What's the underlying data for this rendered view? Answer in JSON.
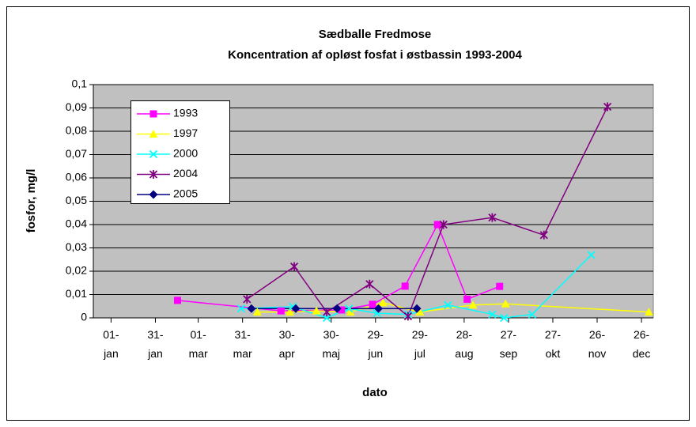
{
  "chart_data": {
    "type": "line",
    "title": "Sædballe Fredmose",
    "subtitle": "Koncentration af opløst fosfat i østbassin 1993-2004",
    "x_label": "dato",
    "y_label": "fosfor, mg/l",
    "xlim": [
      -11,
      368
    ],
    "xticks": [
      {
        "value": 1,
        "label": "01-jan"
      },
      {
        "value": 31,
        "label": "31-jan"
      },
      {
        "value": 60,
        "label": "01-mar"
      },
      {
        "value": 90,
        "label": "31-mar"
      },
      {
        "value": 120,
        "label": "30-apr"
      },
      {
        "value": 150,
        "label": "30-maj"
      },
      {
        "value": 180,
        "label": "29-jun"
      },
      {
        "value": 210,
        "label": "29-jul"
      },
      {
        "value": 240,
        "label": "28-aug"
      },
      {
        "value": 270,
        "label": "27-sep"
      },
      {
        "value": 300,
        "label": "27-okt"
      },
      {
        "value": 330,
        "label": "26-nov"
      },
      {
        "value": 360,
        "label": "26-dec"
      }
    ],
    "ylim": [
      0,
      0.1
    ],
    "yticks": [
      0,
      {
        "value": 0.01,
        "label": "0,01"
      },
      {
        "value": 0.02,
        "label": "0,02"
      },
      {
        "value": 0.03,
        "label": "0,03"
      },
      {
        "value": 0.04,
        "label": "0,04"
      },
      {
        "value": 0.05,
        "label": "0,05"
      },
      {
        "value": 0.06,
        "label": "0,06"
      },
      {
        "value": 0.07,
        "label": "0,07"
      },
      {
        "value": 0.08,
        "label": "0,08"
      },
      {
        "value": 0.09,
        "label": "0,09"
      },
      {
        "value": 0.1,
        "label": "0,1"
      }
    ],
    "grid": true,
    "legend": "upper left",
    "series": [
      {
        "name": "1993",
        "color": "#ff00ff",
        "marker": "square",
        "x": [
          46,
          116,
          157,
          178,
          200,
          222,
          242,
          264
        ],
        "values": [
          0.0075,
          0.003,
          0.0034,
          0.0058,
          0.0136,
          0.04,
          0.008,
          0.0135
        ]
      },
      {
        "name": "1997",
        "color": "#ffff00",
        "marker": "triangle",
        "x": [
          100,
          122,
          140,
          163,
          185,
          210,
          246,
          268,
          365
        ],
        "values": [
          0.0025,
          0.0025,
          0.003,
          0.0025,
          0.0065,
          0.0025,
          0.0055,
          0.006,
          0.0025
        ]
      },
      {
        "name": "2000",
        "color": "#00ffff",
        "marker": "x",
        "x": [
          89,
          124,
          147,
          162,
          181,
          202,
          229,
          259,
          267,
          286,
          326
        ],
        "values": [
          0.004,
          0.0048,
          0,
          0.004,
          0.002,
          0.0015,
          0.0055,
          0.0015,
          0,
          0.0015,
          0.027
        ]
      },
      {
        "name": "2004",
        "color": "#800080",
        "marker": "star",
        "x": [
          93,
          125,
          147,
          176,
          202,
          226,
          259,
          294,
          337
        ],
        "values": [
          0.008,
          0.022,
          0.0025,
          0.0145,
          0.0007,
          0.04,
          0.043,
          0.0355,
          0.0905
        ]
      },
      {
        "name": "2005",
        "color": "#000080",
        "marker": "diamond",
        "x": [
          96,
          126,
          154,
          182,
          208
        ],
        "values": [
          0.004,
          0.004,
          0.004,
          0.004,
          0.004
        ]
      }
    ]
  }
}
